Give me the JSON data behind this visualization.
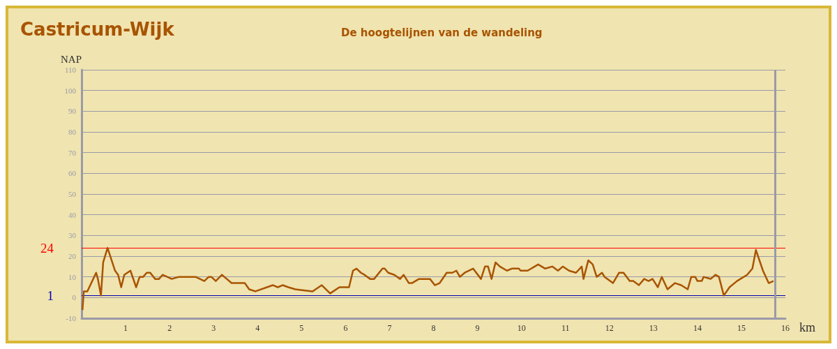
{
  "chart_data": {
    "type": "line",
    "title": "Castricum-Wijk",
    "subtitle": "De hoogtelijnen van de wandeling",
    "xlabel": "km",
    "ylabel": "NAP",
    "xlim": [
      0,
      16
    ],
    "xticks": [
      1,
      2,
      3,
      4,
      5,
      6,
      7,
      8,
      9,
      10,
      11,
      12,
      13,
      14,
      15,
      16
    ],
    "ylim": [
      -10,
      110
    ],
    "yticks": [
      -10,
      0,
      10,
      20,
      30,
      40,
      50,
      60,
      70,
      80,
      90,
      100,
      110
    ],
    "grid": "y",
    "marker": "none",
    "line_style": "solid",
    "ref_lines": [
      {
        "axis": "y",
        "value": 24,
        "label": "24",
        "color": "#ff0000"
      },
      {
        "axis": "y",
        "value": 1,
        "label": "1",
        "color": "#0000b0"
      },
      {
        "axis": "x",
        "value": 15.76,
        "color": "#9a9aa8"
      }
    ],
    "series": [
      {
        "color": "#a85400",
        "x": [
          0.02,
          0.05,
          0.13,
          0.33,
          0.37,
          0.44,
          0.49,
          0.59,
          0.76,
          0.83,
          0.9,
          0.97,
          1.11,
          1.24,
          1.32,
          1.4,
          1.48,
          1.56,
          1.67,
          1.76,
          1.84,
          2.05,
          2.21,
          2.59,
          2.79,
          2.89,
          2.95,
          3.05,
          3.19,
          3.3,
          3.41,
          3.71,
          3.81,
          3.95,
          4.35,
          4.46,
          4.57,
          4.7,
          4.86,
          5.25,
          5.46,
          5.65,
          5.86,
          6.08,
          6.17,
          6.25,
          6.35,
          6.43,
          6.56,
          6.65,
          6.84,
          6.89,
          6.97,
          7.11,
          7.24,
          7.32,
          7.44,
          7.51,
          7.67,
          7.92,
          8.03,
          8.14,
          8.3,
          8.43,
          8.52,
          8.6,
          8.71,
          8.9,
          9.08,
          9.17,
          9.24,
          9.32,
          9.41,
          9.51,
          9.67,
          9.78,
          9.94,
          9.98,
          10.14,
          10.38,
          10.54,
          10.7,
          10.83,
          10.94,
          11.08,
          11.24,
          11.37,
          11.41,
          11.52,
          11.62,
          11.71,
          11.83,
          11.89,
          12.08,
          12.22,
          12.32,
          12.46,
          12.54,
          12.67,
          12.79,
          12.89,
          12.98,
          13.1,
          13.19,
          13.32,
          13.49,
          13.63,
          13.78,
          13.86,
          13.95,
          14.0,
          14.1,
          14.14,
          14.3,
          14.41,
          14.49,
          14.6,
          14.73,
          14.9,
          15.13,
          15.25,
          15.33,
          15.49,
          15.62,
          15.73
        ],
        "values": [
          -6,
          3,
          3,
          12,
          9,
          1,
          17,
          24,
          13,
          11,
          5,
          11,
          13,
          5,
          10,
          10,
          12,
          12,
          9,
          9,
          11,
          9,
          10,
          10,
          8,
          10,
          10,
          8,
          11,
          9,
          7,
          7,
          4,
          3,
          6,
          5,
          6,
          5,
          4,
          3,
          6,
          2,
          5,
          5,
          13,
          14,
          12,
          11,
          9,
          9,
          14,
          14,
          12,
          11,
          9,
          11,
          7,
          7,
          9,
          9,
          6,
          7,
          12,
          12,
          13,
          10,
          12,
          14,
          9,
          15,
          15,
          9,
          17,
          15,
          13,
          14,
          14,
          13,
          13,
          16,
          14,
          15,
          13,
          15,
          13,
          12,
          15,
          9,
          18,
          16,
          10,
          12,
          10,
          7,
          12,
          12,
          8,
          8,
          6,
          9,
          8,
          9,
          5,
          10,
          4,
          7,
          6,
          4,
          10,
          10,
          8,
          8,
          10,
          9,
          11,
          10,
          1,
          5,
          8,
          11,
          14,
          23,
          13,
          7,
          8
        ]
      }
    ]
  }
}
